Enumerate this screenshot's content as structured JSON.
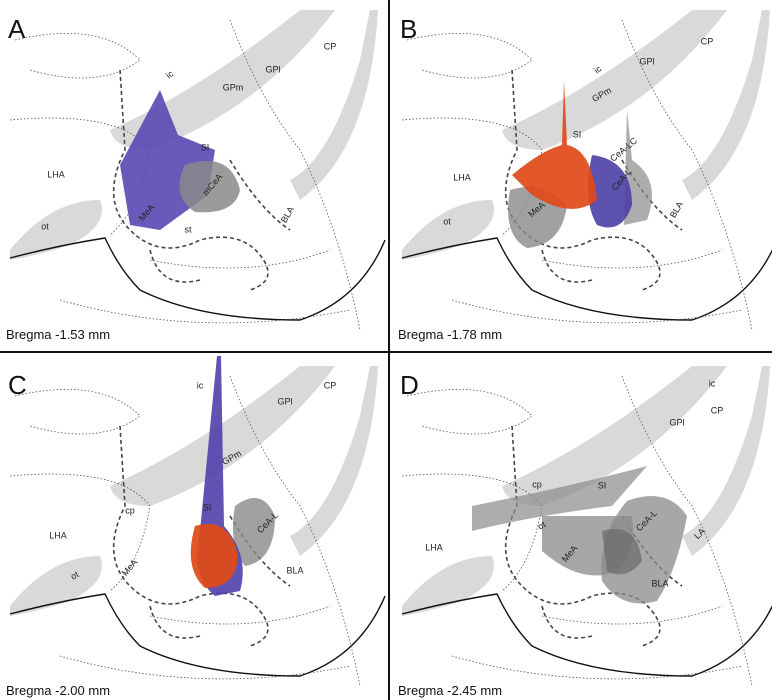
{
  "panels": [
    {
      "letter": "A",
      "bregma": "Bregma -1.53 mm",
      "regions": [
        "ic",
        "GPm",
        "GPl",
        "CP",
        "LHA",
        "SI",
        "mCeA",
        "MeA",
        "st",
        "BLA",
        "ot"
      ]
    },
    {
      "letter": "B",
      "bregma": "Bregma -1.78 mm",
      "regions": [
        "ic",
        "GPl",
        "CP",
        "GPm",
        "SI",
        "CeA-LC",
        "LHA",
        "CeA-L",
        "MeA",
        "BLA",
        "ot"
      ]
    },
    {
      "letter": "C",
      "bregma": "Bregma -2.00 mm",
      "regions": [
        "ic",
        "CP",
        "GPl",
        "GPm",
        "cp",
        "SI",
        "CeA-L",
        "LHA",
        "ot",
        "MeA",
        "BLA"
      ]
    },
    {
      "letter": "D",
      "bregma": "Bregma -2.45 mm",
      "regions": [
        "ic",
        "CP",
        "GPl",
        "cp",
        "SI",
        "CeA-L",
        "LHA",
        "LA",
        "ot",
        "MeA",
        "BLA"
      ]
    }
  ]
}
